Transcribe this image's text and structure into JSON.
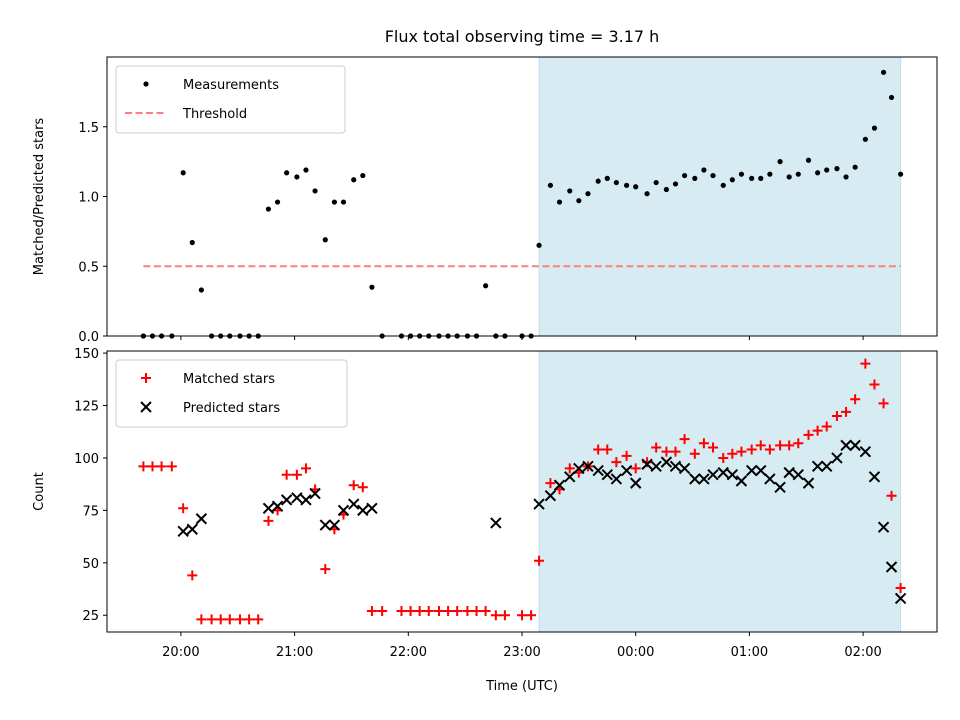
{
  "chart_data": [
    {
      "type": "scatter",
      "panel": "top",
      "title": "Flux total observing time = 3.17 h",
      "xlabel": "",
      "ylabel": "Matched/Predicted stars",
      "xlim": [
        19.35,
        26.65
      ],
      "ylim": [
        0,
        2.0
      ],
      "yticks": [
        0.0,
        0.5,
        1.0,
        1.5
      ],
      "ytick_labels": [
        "0.0",
        "0.5",
        "1.0",
        "1.5"
      ],
      "xticks": [
        20,
        21,
        22,
        23,
        24,
        25,
        26
      ],
      "shaded_region": {
        "x_start": 23.15,
        "x_end": 26.33,
        "color": "#add8e6",
        "alpha": 0.5
      },
      "threshold": {
        "name": "Threshold",
        "y": 0.5,
        "x_start": 19.67,
        "x_end": 26.33,
        "color": "#ff7f7f",
        "style": "dashed"
      },
      "legend": {
        "position": "top-left",
        "entries": [
          {
            "label": "Measurements",
            "marker": "dot",
            "color": "#000000"
          },
          {
            "label": "Threshold",
            "marker": "dashed-line",
            "color": "#ff7f7f"
          }
        ]
      },
      "series": [
        {
          "name": "Measurements",
          "color": "#000000",
          "x": [
            19.67,
            19.75,
            19.83,
            19.92,
            20.02,
            20.1,
            20.18,
            20.27,
            20.35,
            20.43,
            20.52,
            20.6,
            20.68,
            20.77,
            20.85,
            20.93,
            21.02,
            21.1,
            21.18,
            21.27,
            21.35,
            21.43,
            21.52,
            21.6,
            21.68,
            21.77,
            21.94,
            22.02,
            22.1,
            22.18,
            22.27,
            22.35,
            22.43,
            22.52,
            22.6,
            22.68,
            22.77,
            22.85,
            23.0,
            23.08,
            23.15,
            23.25,
            23.33,
            23.42,
            23.5,
            23.58,
            23.67,
            23.75,
            23.83,
            23.92,
            24.0,
            24.1,
            24.18,
            24.27,
            24.35,
            24.43,
            24.52,
            24.6,
            24.68,
            24.77,
            24.85,
            24.93,
            25.02,
            25.1,
            25.18,
            25.27,
            25.35,
            25.43,
            25.52,
            25.6,
            25.68,
            25.77,
            25.85,
            25.93,
            26.02,
            26.1,
            26.18,
            26.25,
            26.33
          ],
          "y": [
            0,
            0,
            0,
            0,
            1.17,
            0.67,
            0.33,
            0,
            0,
            0,
            0,
            0,
            0,
            0.91,
            0.96,
            1.17,
            1.14,
            1.19,
            1.04,
            0.69,
            0.96,
            0.96,
            1.12,
            1.15,
            0.35,
            0,
            0,
            0,
            0,
            0,
            0,
            0,
            0,
            0,
            0,
            0.36,
            0,
            0,
            0,
            0,
            0.65,
            1.08,
            0.96,
            1.04,
            0.97,
            1.02,
            1.11,
            1.13,
            1.1,
            1.08,
            1.07,
            1.02,
            1.1,
            1.05,
            1.09,
            1.15,
            1.13,
            1.19,
            1.15,
            1.08,
            1.12,
            1.16,
            1.13,
            1.13,
            1.16,
            1.25,
            1.14,
            1.16,
            1.26,
            1.17,
            1.19,
            1.2,
            1.14,
            1.21,
            1.41,
            1.49,
            1.89,
            1.71,
            1.16
          ]
        }
      ]
    },
    {
      "type": "scatter",
      "panel": "bottom",
      "title": "",
      "xlabel": "Time (UTC)",
      "ylabel": "Count",
      "xlim": [
        19.35,
        26.65
      ],
      "ylim": [
        17,
        151
      ],
      "yticks": [
        25,
        50,
        75,
        100,
        125,
        150
      ],
      "ytick_labels": [
        "25",
        "50",
        "75",
        "100",
        "125",
        "150"
      ],
      "xticks": [
        20,
        21,
        22,
        23,
        24,
        25,
        26
      ],
      "xtick_labels": [
        "20:00",
        "21:00",
        "22:00",
        "23:00",
        "00:00",
        "01:00",
        "02:00"
      ],
      "shaded_region": {
        "x_start": 23.15,
        "x_end": 26.33,
        "color": "#add8e6",
        "alpha": 0.5
      },
      "legend": {
        "position": "top-left",
        "entries": [
          {
            "label": "Matched stars",
            "marker": "plus",
            "color": "#ff0000"
          },
          {
            "label": "Predicted stars",
            "marker": "x",
            "color": "#000000"
          }
        ]
      },
      "series": [
        {
          "name": "Matched stars",
          "marker": "plus",
          "color": "#ff0000",
          "x": [
            19.67,
            19.75,
            19.83,
            19.92,
            20.02,
            20.1,
            20.18,
            20.27,
            20.35,
            20.43,
            20.52,
            20.6,
            20.68,
            20.77,
            20.85,
            20.93,
            21.02,
            21.1,
            21.18,
            21.27,
            21.35,
            21.43,
            21.52,
            21.6,
            21.68,
            21.77,
            21.94,
            22.02,
            22.1,
            22.18,
            22.27,
            22.35,
            22.43,
            22.52,
            22.6,
            22.68,
            22.77,
            22.85,
            23.0,
            23.08,
            23.15,
            23.25,
            23.33,
            23.42,
            23.5,
            23.58,
            23.67,
            23.75,
            23.83,
            23.92,
            24.0,
            24.1,
            24.18,
            24.27,
            24.35,
            24.43,
            24.52,
            24.6,
            24.68,
            24.77,
            24.85,
            24.93,
            25.02,
            25.1,
            25.18,
            25.27,
            25.35,
            25.43,
            25.52,
            25.6,
            25.68,
            25.77,
            25.85,
            25.93,
            26.02,
            26.1,
            26.18,
            26.25,
            26.33
          ],
          "y": [
            96,
            96,
            96,
            96,
            76,
            44,
            23,
            23,
            23,
            23,
            23,
            23,
            23,
            70,
            75,
            92,
            92,
            95,
            85,
            47,
            66,
            73,
            87,
            86,
            27,
            27,
            27,
            27,
            27,
            27,
            27,
            27,
            27,
            27,
            27,
            27,
            25,
            25,
            25,
            25,
            51,
            88,
            85,
            95,
            93,
            96,
            104,
            104,
            98,
            101,
            95,
            98,
            105,
            103,
            103,
            109,
            102,
            107,
            105,
            100,
            102,
            103,
            104,
            106,
            104,
            106,
            106,
            107,
            111,
            113,
            115,
            120,
            122,
            128,
            145,
            135,
            126,
            82,
            38
          ]
        },
        {
          "name": "Predicted stars",
          "marker": "x",
          "color": "#000000",
          "x": [
            20.02,
            20.1,
            20.18,
            20.77,
            20.85,
            20.93,
            21.02,
            21.1,
            21.18,
            21.27,
            21.35,
            21.43,
            21.52,
            21.6,
            21.68,
            22.77,
            23.15,
            23.25,
            23.33,
            23.42,
            23.5,
            23.58,
            23.67,
            23.75,
            23.83,
            23.92,
            24.0,
            24.1,
            24.18,
            24.27,
            24.35,
            24.43,
            24.52,
            24.6,
            24.68,
            24.77,
            24.85,
            24.93,
            25.02,
            25.1,
            25.18,
            25.27,
            25.35,
            25.43,
            25.52,
            25.6,
            25.68,
            25.77,
            25.85,
            25.93,
            26.02,
            26.1,
            26.18,
            26.25,
            26.33
          ],
          "y": [
            65,
            66,
            71,
            76,
            77,
            80,
            81,
            80,
            83,
            68,
            68,
            75,
            78,
            75,
            76,
            69,
            78,
            82,
            87,
            91,
            95,
            96,
            94,
            92,
            90,
            94,
            88,
            97,
            96,
            98,
            96,
            95,
            90,
            90,
            92,
            93,
            92,
            89,
            94,
            94,
            90,
            86,
            93,
            92,
            88,
            96,
            96,
            100,
            106,
            106,
            103,
            91,
            67,
            48,
            33
          ]
        }
      ]
    }
  ]
}
